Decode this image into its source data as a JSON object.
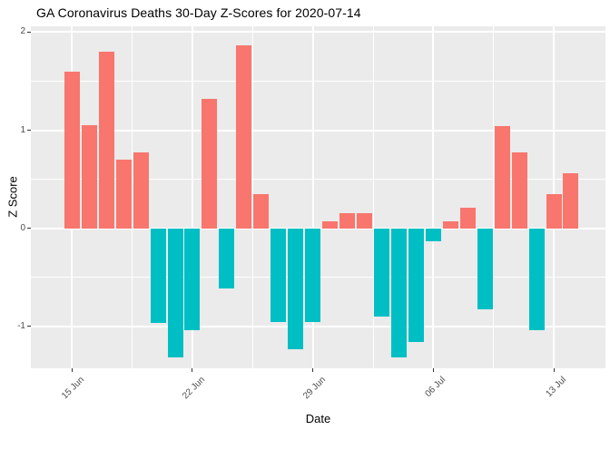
{
  "chart_data": {
    "type": "bar",
    "title": "GA Coronavirus Deaths 30-Day Z-Scores for 2020-07-14",
    "xlabel": "Date",
    "ylabel": "Z Score",
    "x": [
      "2020-06-15",
      "2020-06-16",
      "2020-06-17",
      "2020-06-18",
      "2020-06-19",
      "2020-06-20",
      "2020-06-21",
      "2020-06-22",
      "2020-06-23",
      "2020-06-24",
      "2020-06-25",
      "2020-06-26",
      "2020-06-27",
      "2020-06-28",
      "2020-06-29",
      "2020-06-30",
      "2020-07-01",
      "2020-07-02",
      "2020-07-03",
      "2020-07-04",
      "2020-07-05",
      "2020-07-06",
      "2020-07-07",
      "2020-07-08",
      "2020-07-09",
      "2020-07-10",
      "2020-07-11",
      "2020-07-12",
      "2020-07-13",
      "2020-07-14"
    ],
    "values": [
      1.6,
      1.05,
      1.8,
      0.7,
      0.77,
      -0.97,
      -1.32,
      -1.04,
      1.32,
      -0.62,
      1.87,
      0.35,
      -0.96,
      -1.24,
      -0.96,
      0.07,
      0.15,
      0.15,
      -0.9,
      -1.32,
      -1.16,
      -0.13,
      0.07,
      0.21,
      -0.83,
      1.04,
      0.77,
      -1.04,
      0.35,
      0.56
    ],
    "x_ticks": [
      {
        "day": 0,
        "label": "15 Jun"
      },
      {
        "day": 7,
        "label": "22 Jun"
      },
      {
        "day": 14,
        "label": "29 Jun"
      },
      {
        "day": 21,
        "label": "06 Jul"
      },
      {
        "day": 28,
        "label": "13 Jul"
      }
    ],
    "y_ticks": [
      {
        "v": 2,
        "label": "2"
      },
      {
        "v": 1,
        "label": "1"
      },
      {
        "v": 0,
        "label": "0"
      },
      {
        "v": -1,
        "label": "-1"
      }
    ],
    "y_minor_ticks": [
      1.5,
      0.5,
      -0.5
    ],
    "ylim": [
      -1.43,
      2.06
    ],
    "grid": true,
    "legend": "none",
    "colors": {
      "positive": "#F8766D",
      "negative": "#00BFC4",
      "panel_bg": "#EBEBEB",
      "gridline": "#FFFFFF",
      "tick_text": "#4D4D4D",
      "axis_text": "#000000"
    }
  }
}
